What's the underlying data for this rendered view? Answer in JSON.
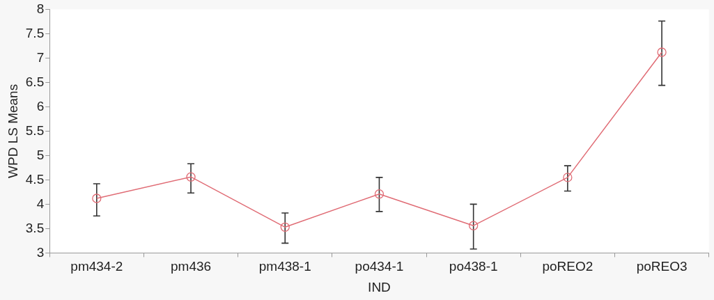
{
  "chart_data": {
    "type": "line",
    "xlabel": "IND",
    "ylabel": "WPD LS Means",
    "categories": [
      "pm434-2",
      "pm436",
      "pm438-1",
      "po434-1",
      "po438-1",
      "poREO2",
      "poREO3"
    ],
    "series": [
      {
        "color": "#e06c75",
        "values": [
          4.12,
          4.56,
          3.53,
          4.21,
          3.56,
          4.55,
          7.12
        ],
        "errors": [
          [
            3.76,
            4.42
          ],
          [
            4.23,
            4.83
          ],
          [
            3.2,
            3.82
          ],
          [
            3.85,
            4.55
          ],
          [
            3.08,
            4.0
          ],
          [
            4.27,
            4.79
          ],
          [
            6.44,
            7.76
          ]
        ]
      }
    ],
    "ylim": [
      3,
      8
    ],
    "yticks": [
      3,
      3.5,
      4,
      4.5,
      5,
      5.5,
      6,
      6.5,
      7,
      7.5,
      8
    ],
    "grid": false,
    "legend": false,
    "marker": "circle",
    "line_style": "solid"
  }
}
